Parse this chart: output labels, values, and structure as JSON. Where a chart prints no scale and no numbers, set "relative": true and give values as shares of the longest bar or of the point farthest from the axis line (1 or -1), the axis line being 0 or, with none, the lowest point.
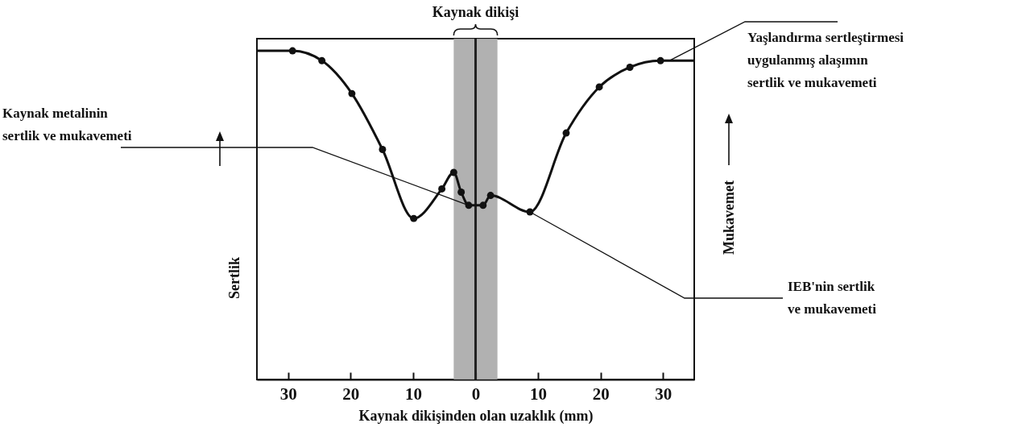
{
  "chart_data": {
    "type": "line",
    "relative": true,
    "xlabel": "Kaynak dikişinden olan uzaklık (mm)",
    "ylabel": "Sertlik",
    "y2label": "Mukavemet",
    "xlim": [
      -35,
      35
    ],
    "xticks": [
      {
        "value": -30,
        "label": "30"
      },
      {
        "value": -20,
        "label": "20"
      },
      {
        "value": -10,
        "label": "10"
      },
      0,
      10,
      20,
      30
    ],
    "series": [
      {
        "marker": "none",
        "color": "#111111",
        "x": [
          -35,
          -29.3,
          -24.6,
          -19.8,
          -14.9,
          -9.9,
          -5.4,
          -3.5,
          -2.3,
          -1.1,
          1.2,
          2.4,
          8.7,
          14.5,
          19.8,
          24.7,
          29.6,
          35
        ],
        "values": [
          1.0,
          1.0,
          0.97,
          0.87,
          0.7,
          0.49,
          0.58,
          0.63,
          0.57,
          0.53,
          0.53,
          0.56,
          0.51,
          0.75,
          0.89,
          0.95,
          0.97,
          0.97
        ]
      },
      {
        "type": "scatter",
        "marker": "circle",
        "color": "#111111",
        "x": [
          -29.3,
          -24.6,
          -19.8,
          -14.9,
          -9.9,
          -5.4,
          -3.5,
          -2.3,
          -1.1,
          1.2,
          2.4,
          8.7,
          14.5,
          19.8,
          24.7,
          29.6
        ],
        "values": [
          1.0,
          0.97,
          0.87,
          0.7,
          0.49,
          0.58,
          0.63,
          0.57,
          0.53,
          0.53,
          0.56,
          0.51,
          0.75,
          0.89,
          0.95,
          0.97
        ]
      }
    ],
    "bands": [
      {
        "axis": "x",
        "from": -3.5,
        "to": 3.5,
        "label": "Kaynak dikişi",
        "color": "#a8a8a8"
      }
    ],
    "ref_lines": [
      {
        "axis": "x",
        "value": 0,
        "color": "#222222"
      }
    ],
    "annotations": [
      {
        "text": "Kaynak metalinin\nsertlik ve mukavemeti",
        "x": -1.1,
        "y": 0.53
      },
      {
        "text": "Yaşlandırma sertleştirmesi\nuygulanmış alaşımın\nsertlik ve mukavemeti",
        "x": 31,
        "y": 0.97
      },
      {
        "text": "IEB'nin sertlik\nve mukavemeti",
        "x": 8.7,
        "y": 0.51
      }
    ]
  }
}
